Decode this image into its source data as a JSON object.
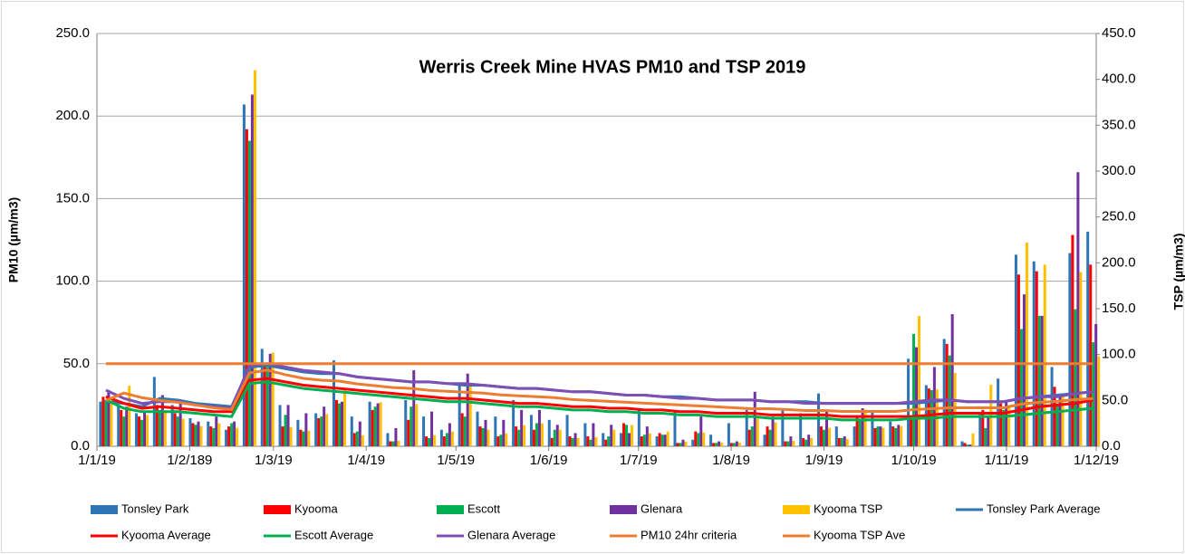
{
  "chart_data": {
    "type": "combo",
    "title": "Werris Creek Mine HVAS PM10 and TSP 2019",
    "y_label": "PM10 (µm/m3)",
    "y2_label": "TSP (µm/m3)",
    "x": [
      3,
      9,
      15,
      21,
      27,
      33,
      39,
      45,
      51,
      57,
      63,
      69,
      75,
      81,
      87,
      93,
      99,
      105,
      111,
      117,
      123,
      129,
      135,
      141,
      147,
      153,
      159,
      165,
      171,
      177,
      183,
      189,
      195,
      201,
      207,
      213,
      219,
      225,
      231,
      237,
      243,
      249,
      255,
      261,
      267,
      273,
      279,
      285,
      291,
      297,
      303,
      309,
      315,
      321,
      327,
      333
    ],
    "xlim": [
      0,
      334
    ],
    "xticks": [
      {
        "value": 0,
        "label": "1/1/19"
      },
      {
        "value": 31,
        "label": "1/2/189"
      },
      {
        "value": 59,
        "label": "1/3/19"
      },
      {
        "value": 90,
        "label": "1/4/19"
      },
      {
        "value": 120,
        "label": "1/5/19"
      },
      {
        "value": 151,
        "label": "1/6/19"
      },
      {
        "value": 181,
        "label": "1/7/19"
      },
      {
        "value": 212,
        "label": "1/8/19"
      },
      {
        "value": 243,
        "label": "1/9/19"
      },
      {
        "value": 273,
        "label": "1/10/19"
      },
      {
        "value": 304,
        "label": "1/11/19"
      },
      {
        "value": 334,
        "label": "1/12/19"
      }
    ],
    "ylim": [
      0,
      250
    ],
    "yticks": [
      {
        "value": 0,
        "label": "0.0"
      },
      {
        "value": 50,
        "label": "50.0"
      },
      {
        "value": 100,
        "label": "100.0"
      },
      {
        "value": 150,
        "label": "150.0"
      },
      {
        "value": 200,
        "label": "200.0"
      },
      {
        "value": 250,
        "label": "250.0"
      }
    ],
    "y2lim": [
      0,
      450
    ],
    "y2ticks": [
      {
        "value": 0,
        "label": "0.0"
      },
      {
        "value": 50,
        "label": "50.0"
      },
      {
        "value": 100,
        "label": "100.0"
      },
      {
        "value": 150,
        "label": "150.0"
      },
      {
        "value": 200,
        "label": "200.0"
      },
      {
        "value": 250,
        "label": "250.0"
      },
      {
        "value": 300,
        "label": "300.0"
      },
      {
        "value": 350,
        "label": "350.0"
      },
      {
        "value": 400,
        "label": "400.0"
      },
      {
        "value": 450,
        "label": "450.0"
      }
    ],
    "grid": true,
    "legend": "bottom",
    "series": [
      {
        "name": "Tonsley Park",
        "type": "bar",
        "color": "#2e75b6",
        "values": [
          27,
          25,
          20,
          42,
          25,
          17,
          15,
          10,
          207,
          59,
          25,
          16,
          20,
          52,
          18,
          27,
          8,
          28,
          18,
          10,
          37,
          21,
          18,
          28,
          19,
          16,
          19,
          14,
          8,
          8,
          22,
          6,
          21,
          4,
          7,
          14,
          22,
          7,
          22,
          20,
          32,
          12,
          12,
          22,
          15,
          53,
          37,
          65,
          3,
          20,
          41,
          116,
          112,
          48,
          117,
          130
        ]
      },
      {
        "name": "Kyooma",
        "type": "bar",
        "color": "#ff0000",
        "values": [
          30,
          22,
          18,
          25,
          20,
          14,
          12,
          12,
          192,
          50,
          12,
          10,
          17,
          28,
          8,
          22,
          3,
          16,
          6,
          6,
          20,
          12,
          6,
          12,
          10,
          5,
          6,
          6,
          4,
          14,
          6,
          8,
          2,
          9,
          2,
          2,
          10,
          12,
          3,
          5,
          12,
          5,
          18,
          11,
          12,
          18,
          35,
          62,
          2,
          22,
          26,
          104,
          106,
          36,
          128,
          110
        ]
      },
      {
        "name": "Escott",
        "type": "bar",
        "color": "#00b050",
        "values": [
          28,
          18,
          16,
          22,
          18,
          13,
          11,
          14,
          185,
          48,
          19,
          9,
          18,
          26,
          9,
          24,
          3,
          24,
          5,
          8,
          18,
          11,
          7,
          10,
          14,
          10,
          5,
          4,
          6,
          13,
          7,
          7,
          2,
          8,
          2,
          2,
          12,
          10,
          3,
          4,
          10,
          5,
          16,
          12,
          11,
          68,
          34,
          55,
          1,
          11,
          22,
          71,
          79,
          26,
          83,
          63
        ]
      },
      {
        "name": "Glenara",
        "type": "bar",
        "color": "#7030a0",
        "values": [
          34,
          24,
          21,
          31,
          26,
          15,
          18,
          15,
          213,
          56,
          25,
          20,
          24,
          27,
          15,
          26,
          11,
          46,
          21,
          14,
          44,
          16,
          16,
          22,
          22,
          13,
          8,
          14,
          13,
          8,
          12,
          7,
          4,
          18,
          3,
          3,
          33,
          18,
          6,
          7,
          22,
          6,
          23,
          12,
          13,
          60,
          48,
          80,
          1,
          18,
          27,
          92,
          79,
          30,
          166,
          74
        ]
      },
      {
        "name": "Kyooma TSP",
        "type": "bar",
        "axis": "y2",
        "color": "#ffc000",
        "values": [
          50,
          66,
          34,
          38,
          30,
          22,
          25,
          20,
          410,
          102,
          21,
          17,
          35,
          62,
          12,
          48,
          6,
          46,
          12,
          16,
          66,
          18,
          14,
          23,
          25,
          18,
          9,
          10,
          18,
          23,
          14,
          16,
          5,
          15,
          4,
          4,
          30,
          26,
          6,
          9,
          20,
          8,
          40,
          20,
          22,
          142,
          62,
          80,
          14,
          67,
          45,
          222,
          198,
          55,
          190,
          98
        ]
      },
      {
        "name": "Tonsley Park Average",
        "type": "line",
        "color": "#2e75b6",
        "values": [
          27,
          26,
          24,
          29,
          28,
          26,
          25,
          24,
          48,
          49,
          47,
          45,
          44,
          44,
          42,
          41,
          40,
          39,
          39,
          38,
          37,
          37,
          36,
          35,
          35,
          34,
          33,
          33,
          32,
          31,
          31,
          30,
          30,
          29,
          28,
          28,
          28,
          27,
          27,
          27,
          26,
          26,
          26,
          26,
          26,
          26,
          27,
          28,
          27,
          27,
          27,
          29,
          30,
          31,
          32,
          33
        ]
      },
      {
        "name": "Kyooma Average",
        "type": "line",
        "color": "#ff0000",
        "values": [
          30,
          26,
          23,
          24,
          23,
          22,
          21,
          21,
          40,
          41,
          39,
          37,
          36,
          35,
          34,
          33,
          32,
          31,
          30,
          29,
          29,
          28,
          27,
          26,
          26,
          25,
          24,
          24,
          23,
          23,
          22,
          22,
          21,
          21,
          20,
          20,
          20,
          19,
          19,
          19,
          19,
          18,
          18,
          18,
          18,
          18,
          19,
          20,
          20,
          20,
          20,
          22,
          24,
          25,
          26,
          28
        ]
      },
      {
        "name": "Escott Average",
        "type": "line",
        "color": "#00b050",
        "values": [
          28,
          23,
          21,
          21,
          21,
          20,
          19,
          18,
          38,
          39,
          37,
          35,
          34,
          33,
          32,
          31,
          30,
          29,
          28,
          27,
          27,
          26,
          25,
          24,
          24,
          23,
          22,
          22,
          21,
          21,
          20,
          20,
          19,
          19,
          18,
          18,
          18,
          17,
          17,
          17,
          17,
          16,
          16,
          16,
          16,
          17,
          17,
          18,
          18,
          18,
          18,
          19,
          20,
          21,
          22,
          23
        ]
      },
      {
        "name": "Glenara Average",
        "type": "line",
        "color": "#7f4fb5",
        "values": [
          34,
          29,
          26,
          27,
          27,
          25,
          24,
          23,
          49,
          50,
          48,
          46,
          45,
          44,
          42,
          41,
          40,
          39,
          39,
          38,
          38,
          37,
          36,
          35,
          35,
          34,
          33,
          33,
          32,
          31,
          31,
          30,
          29,
          29,
          28,
          28,
          28,
          27,
          27,
          26,
          26,
          26,
          26,
          26,
          26,
          27,
          28,
          28,
          27,
          27,
          27,
          29,
          30,
          30,
          32,
          33
        ]
      },
      {
        "name": "PM10 24hr criteria",
        "type": "line",
        "color": "#ed7d31",
        "values": [
          50,
          50,
          50,
          50,
          50,
          50,
          50,
          50,
          50,
          50,
          50,
          50,
          50,
          50,
          50,
          50,
          50,
          50,
          50,
          50,
          50,
          50,
          50,
          50,
          50,
          50,
          50,
          50,
          50,
          50,
          50,
          50,
          50,
          50,
          50,
          50,
          50,
          50,
          50,
          50,
          50,
          50,
          50,
          50,
          50,
          50,
          50,
          50,
          50,
          50,
          50,
          50,
          50,
          50,
          50,
          50
        ]
      },
      {
        "name": "Kyooma TSP Ave",
        "type": "line",
        "axis": "y2",
        "color": "#ed7d31",
        "values": [
          50,
          58,
          53,
          50,
          48,
          45,
          42,
          40,
          80,
          83,
          78,
          74,
          72,
          71,
          68,
          66,
          64,
          63,
          61,
          60,
          59,
          58,
          56,
          55,
          54,
          53,
          51,
          50,
          49,
          48,
          47,
          46,
          45,
          44,
          43,
          42,
          41,
          41,
          40,
          39,
          39,
          38,
          38,
          38,
          38,
          40,
          41,
          42,
          42,
          42,
          42,
          46,
          48,
          49,
          51,
          52
        ]
      }
    ]
  }
}
